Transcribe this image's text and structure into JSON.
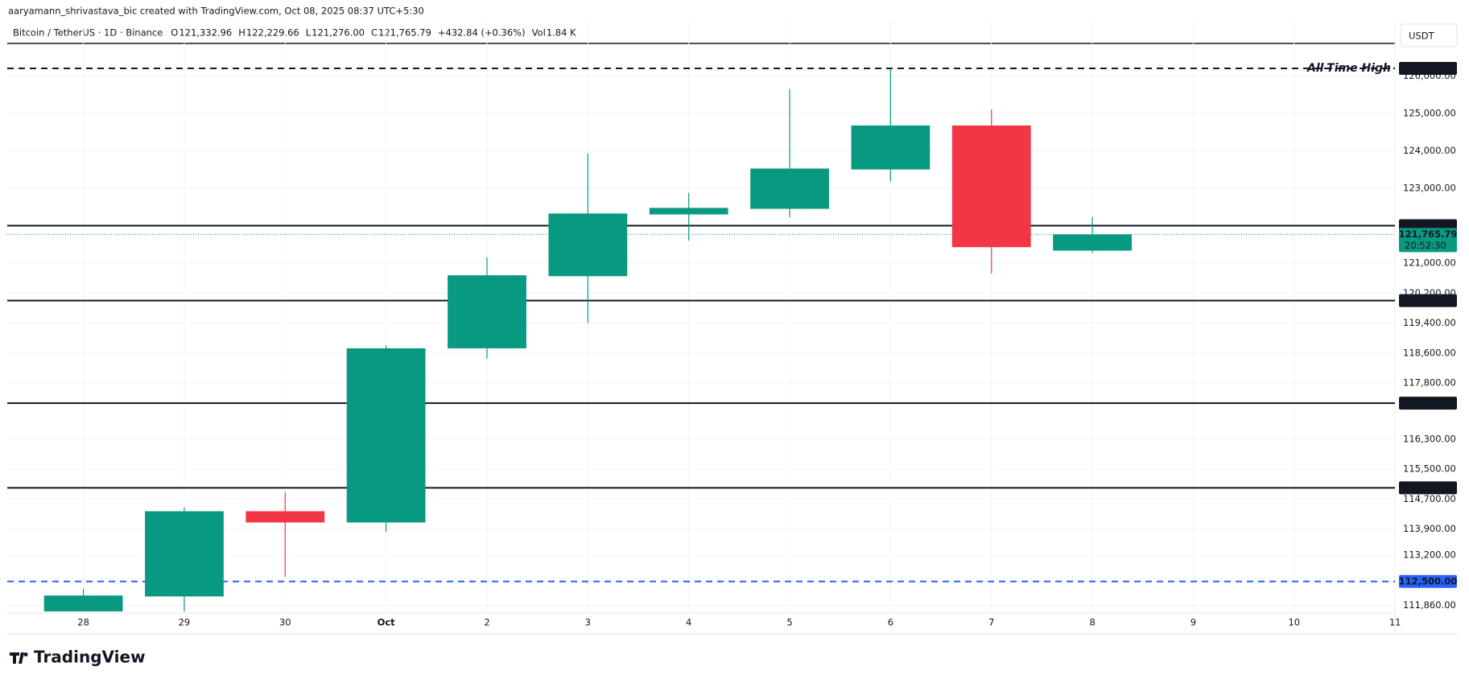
{
  "chart_data": {
    "type": "candlestick",
    "attribution": "aaryamann_shrivastava_bic created with TradingView.com, Oct 08, 2025 08:37 UTC+5:30",
    "legend": {
      "symbol": "Bitcoin / TetherUS · 1D · Binance",
      "items": [
        {
          "key": "O",
          "value": "121,332.96"
        },
        {
          "key": "H",
          "value": "122,229.66"
        },
        {
          "key": "L",
          "value": "121,276.00"
        },
        {
          "key": "C",
          "value": "121,765.79"
        }
      ],
      "change": "+432.84 (+0.36%)",
      "vol_key": "Vol",
      "vol": "1.84 K"
    },
    "currency": "USDT",
    "logo": "TradingView",
    "categories": [
      "28",
      "29",
      "30",
      "Oct",
      "2",
      "3",
      "4",
      "5",
      "6",
      "7",
      "8",
      "9",
      "10",
      "11"
    ],
    "open": [
      111700,
      112100,
      114375,
      114075,
      118725,
      120650,
      122300,
      122450,
      123500,
      124675,
      121332.96,
      null,
      null,
      null
    ],
    "high": [
      112300,
      114475,
      114875,
      118800,
      121150,
      123925,
      122875,
      125650,
      126199.63,
      125100,
      122229.66,
      null,
      null,
      null
    ],
    "low": [
      111700,
      111700,
      112625,
      113825,
      118450,
      119400,
      121600,
      122225,
      123175,
      120725,
      121276.0,
      null,
      null,
      null
    ],
    "close": [
      112125,
      114375,
      114075,
      118725,
      120675,
      122325,
      122475,
      123525,
      124675,
      121425,
      121765.79,
      null,
      null,
      null
    ],
    "up_color": "#089981",
    "down_color": "#f23645",
    "ylim": [
      111650,
      127475
    ],
    "yticks": [
      {
        "value": 126000,
        "label": "126,000.00"
      },
      {
        "value": 125000,
        "label": "125,000.00"
      },
      {
        "value": 124000,
        "label": "124,000.00"
      },
      {
        "value": 123000,
        "label": "123,000.00"
      },
      {
        "value": 121000,
        "label": "121,000.00"
      },
      {
        "value": 120200,
        "label": "120,200.00"
      },
      {
        "value": 119400,
        "label": "119,400.00"
      },
      {
        "value": 118600,
        "label": "118,600.00"
      },
      {
        "value": 117800,
        "label": "117,800.00"
      },
      {
        "value": 116300,
        "label": "116,300.00"
      },
      {
        "value": 115500,
        "label": "115,500.00"
      },
      {
        "value": 114700,
        "label": "114,700.00"
      },
      {
        "value": 113900,
        "label": "113,900.00"
      },
      {
        "value": 113200,
        "label": "113,200.00"
      },
      {
        "value": 111860,
        "label": "111,860.00"
      }
    ],
    "grid": true,
    "price_lines": [
      {
        "value": 126199.63,
        "label": "126,199.63",
        "style": "dashed",
        "color": "#131722",
        "annotation": "All-Time High"
      },
      {
        "value": 122000,
        "label": "122,000.00",
        "style": "solid",
        "color": "#131722"
      },
      {
        "value": 121765.79,
        "label": "121,765.79",
        "style": "dotted",
        "color": "#089981",
        "countdown": "20:52:30"
      },
      {
        "value": 120000,
        "label": "120,000.00",
        "style": "solid",
        "color": "#131722"
      },
      {
        "value": 117261.3,
        "label": "117,261.30",
        "style": "solid",
        "color": "#131722"
      },
      {
        "value": 115000,
        "label": "115,000.00",
        "style": "solid",
        "color": "#131722"
      },
      {
        "value": 112500,
        "label": "112,500.00",
        "style": "dashed",
        "color": "#2962ff"
      }
    ]
  }
}
